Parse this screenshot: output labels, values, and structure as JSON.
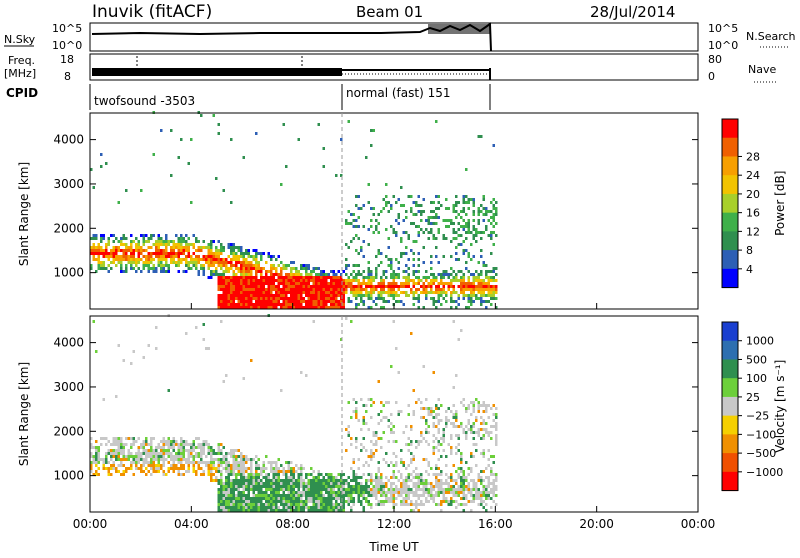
{
  "header": {
    "title": "Inuvik (fitACF)",
    "beam": "Beam 01",
    "date": "28/Jul/2014"
  },
  "strip": {
    "nsky_label": "N.Sky",
    "nsky_ticks": [
      "10^5",
      "10^0"
    ],
    "nsky_right_ticks": [
      "10^5",
      "10^0"
    ],
    "nsearch_label": "N.Search",
    "freq_label_top": "Freq.",
    "freq_label_unit": "[MHz]",
    "freq_ticks": [
      "18",
      "8"
    ],
    "nave_ticks": [
      "80",
      "0"
    ],
    "nave_label": "Nave",
    "cpid_label": "CPID",
    "cpid_entries": [
      "twofsound -3503",
      "normal (fast) 151"
    ]
  },
  "chart_data": [
    {
      "type": "heatmap",
      "name": "power",
      "ylabel": "Slant Range [km]",
      "xlabel": "",
      "x_ticks": [
        "00:00",
        "04:00",
        "08:00",
        "12:00",
        "16:00",
        "20:00",
        "00:00"
      ],
      "y_ticks": [
        1000,
        2000,
        3000,
        4000
      ],
      "xlim_hours": [
        0,
        24
      ],
      "ylim_km": [
        180,
        4600
      ],
      "colorbar": {
        "label": "Power [dB]",
        "ticks": [
          "4",
          "8",
          "12",
          "16",
          "20",
          "24",
          "28"
        ],
        "colors": [
          "#0000ff",
          "#2d5fb5",
          "#2f8f4f",
          "#3fb04a",
          "#a8cf2a",
          "#f2c300",
          "#f79f00",
          "#f06000",
          "#ff0000"
        ]
      },
      "data_end_hour": 16,
      "mode_change_hour": 10
    },
    {
      "type": "heatmap",
      "name": "velocity",
      "ylabel": "Slant Range [km]",
      "xlabel": "Time UT",
      "x_ticks": [
        "00:00",
        "04:00",
        "08:00",
        "12:00",
        "16:00",
        "20:00",
        "00:00"
      ],
      "y_ticks": [
        1000,
        2000,
        3000,
        4000
      ],
      "xlim_hours": [
        0,
        24
      ],
      "ylim_km": [
        180,
        4600
      ],
      "colorbar": {
        "label": "Velocity [m s⁻¹]",
        "ticks": [
          "1000",
          "500",
          "100",
          "25",
          "−25",
          "−100",
          "−500",
          "−1000"
        ],
        "colors": [
          "#1a3fd0",
          "#2d6fb0",
          "#2f8f4f",
          "#6ccf3a",
          "#c8c8c8",
          "#f5d000",
          "#f09000",
          "#f05000",
          "#ff0000"
        ]
      },
      "data_end_hour": 16,
      "mode_change_hour": 10
    }
  ]
}
